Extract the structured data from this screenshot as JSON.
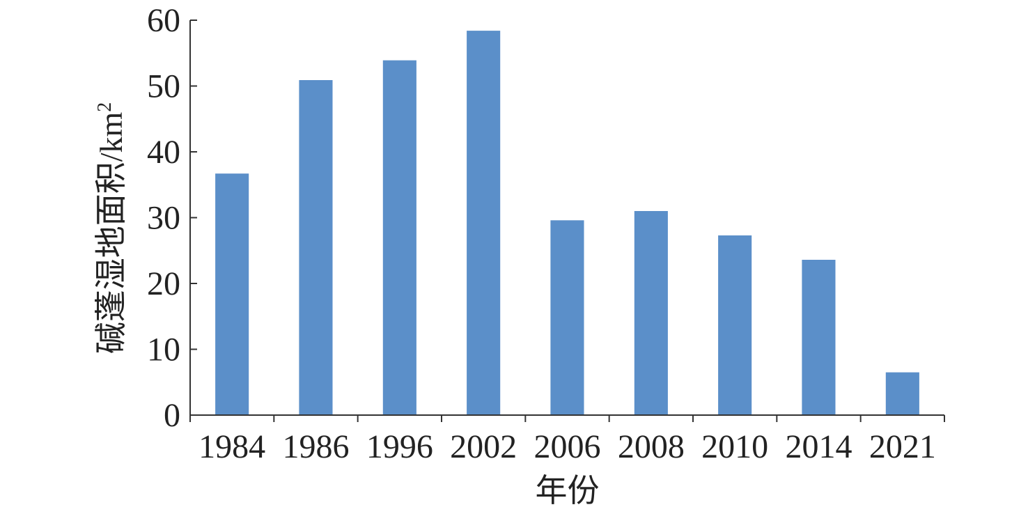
{
  "chart_data": {
    "type": "bar",
    "categories": [
      "1984",
      "1986",
      "1996",
      "2002",
      "2006",
      "2008",
      "2010",
      "2014",
      "2021"
    ],
    "values": [
      36.7,
      50.9,
      53.9,
      58.4,
      29.6,
      31.0,
      27.3,
      23.6,
      6.5
    ],
    "title": "",
    "xlabel": "年份",
    "ylabel_main": "碱蓬湿地面积/km",
    "ylabel_sup": "2",
    "ylim": [
      0,
      60
    ],
    "yticks": [
      0,
      10,
      20,
      30,
      40,
      50,
      60
    ],
    "grid": false,
    "legend": "none",
    "bar_color": "#5b8fc9"
  }
}
